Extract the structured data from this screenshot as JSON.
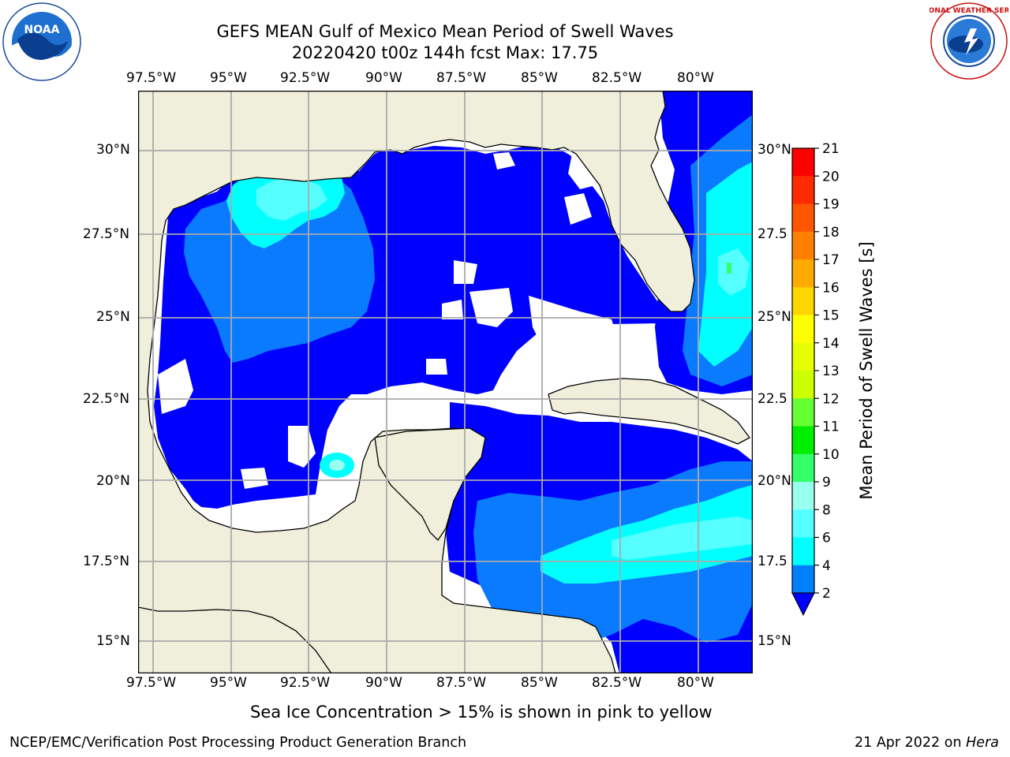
{
  "title": {
    "line1": "GEFS MEAN Gulf of Mexico Mean Period of Swell Waves",
    "line2": "20220420 t00z 144h fcst   Max: 17.75"
  },
  "logos": {
    "left": "NOAA",
    "left_ring": "NATIONAL OCEANIC AND ATMOSPHERIC ADMINISTRATION · U.S. DEPARTMENT OF COMMERCE",
    "right_ring": "NATIONAL WEATHER SERVICE"
  },
  "axes": {
    "lon_ticks": [
      "97.5°W",
      "95°W",
      "92.5°W",
      "90°W",
      "87.5°W",
      "85°W",
      "82.5°W",
      "80°W"
    ],
    "lat_ticks_left": [
      "30°N",
      "27.5°N",
      "25°N",
      "22.5°N",
      "20°N",
      "17.5°N",
      "15°N"
    ],
    "lat_ticks_right": [
      "30°N",
      "27.5",
      "25°N",
      "22.5",
      "20°N",
      "17.5",
      "15°N"
    ]
  },
  "colorbar": {
    "label": "Mean Period of Swell Waves [s]",
    "ticks": [
      "21",
      "20",
      "19",
      "18",
      "17",
      "16",
      "15",
      "14",
      "13",
      "12",
      "11",
      "10",
      "9",
      "8",
      "6",
      "4",
      "2"
    ],
    "colors": [
      "#ff0000",
      "#ff2a00",
      "#ff5500",
      "#ff8000",
      "#ffaa00",
      "#ffd500",
      "#ffff00",
      "#e6ff00",
      "#ccff00",
      "#66ff33",
      "#00ee00",
      "#33ff66",
      "#99ffee",
      "#55ffff",
      "#00ffff",
      "#0080ff"
    ],
    "extend_color": "#0000ff"
  },
  "note": "Sea Ice Concentration > 15% is shown in pink to yellow",
  "footer": {
    "left": "NCEP/EMC/Verification Post Processing Product Generation Branch",
    "right_date": "21 Apr 2022 on",
    "right_machine": "Hera"
  },
  "map_colors": {
    "land": "#efefdc",
    "blue": "#0000ff",
    "mid_blue": "#0a7aff",
    "cyan": "#00ffff",
    "light_cyan": "#55ffff",
    "no_data": "#ffffff",
    "grid": "#aaaaaa",
    "coast": "#000000"
  }
}
